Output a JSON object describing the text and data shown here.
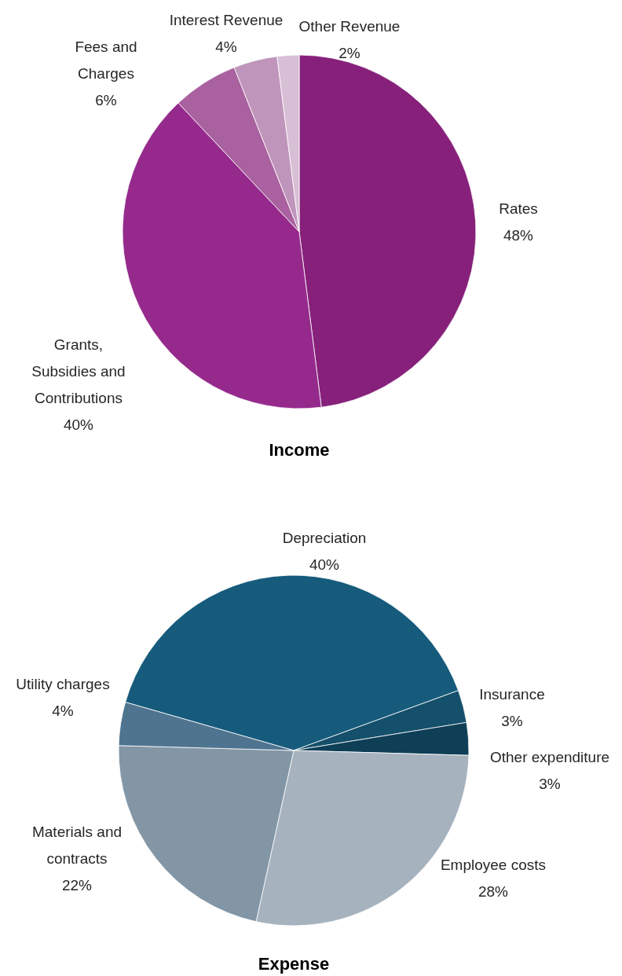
{
  "chart_data": [
    {
      "type": "pie",
      "title": "Income",
      "categories": [
        "Rates",
        "Grants, Subsidies and Contributions",
        "Fees and Charges",
        "Interest Revenue",
        "Other Revenue"
      ],
      "values": [
        48,
        40,
        6,
        4,
        2
      ],
      "value_labels": [
        "48%",
        "40%",
        "6%",
        "4%",
        "2%"
      ],
      "colors": [
        "#86207a",
        "#952a8c",
        "#a9619f",
        "#c095bb",
        "#d7bfd5"
      ]
    },
    {
      "type": "pie",
      "title": "Expense",
      "categories": [
        "Depreciation",
        "Insurance",
        "Other expenditure",
        "Employee costs",
        "Materials and contracts",
        "Utility charges"
      ],
      "values": [
        40,
        3,
        3,
        28,
        22,
        4
      ],
      "value_labels": [
        "40%",
        "3%",
        "3%",
        "28%",
        "22%",
        "4%"
      ],
      "colors": [
        "#165b7c",
        "#144f6b",
        "#0e3f57",
        "#a6b2be",
        "#8396a6",
        "#4f7490"
      ]
    }
  ]
}
